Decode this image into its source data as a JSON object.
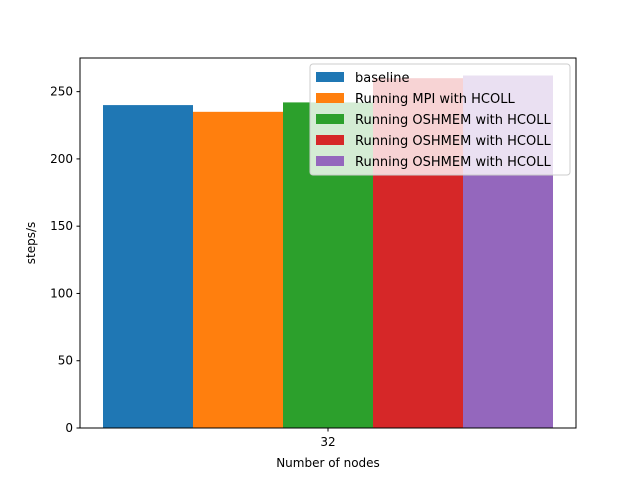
{
  "chart_data": {
    "type": "bar",
    "title": "",
    "xlabel": "Number of nodes",
    "ylabel": "steps/s",
    "categories": [
      "32"
    ],
    "ylim": [
      0,
      275
    ],
    "yticks": [
      0,
      50,
      100,
      150,
      200,
      250
    ],
    "grid": false,
    "legend_position": "top-right",
    "series": [
      {
        "name": "baseline",
        "values": [
          240
        ],
        "color": "#1f77b4"
      },
      {
        "name": "Running MPI with HCOLL",
        "values": [
          235
        ],
        "color": "#ff7f0e"
      },
      {
        "name": "Running OSHMEM with HCOLL",
        "values": [
          242
        ],
        "color": "#2ca02c"
      },
      {
        "name": "Running OSHMEM with HCOLL",
        "values": [
          260
        ],
        "color": "#d62728"
      },
      {
        "name": "Running OSHMEM with HCOLL",
        "values": [
          262
        ],
        "color": "#9467bd"
      }
    ]
  }
}
